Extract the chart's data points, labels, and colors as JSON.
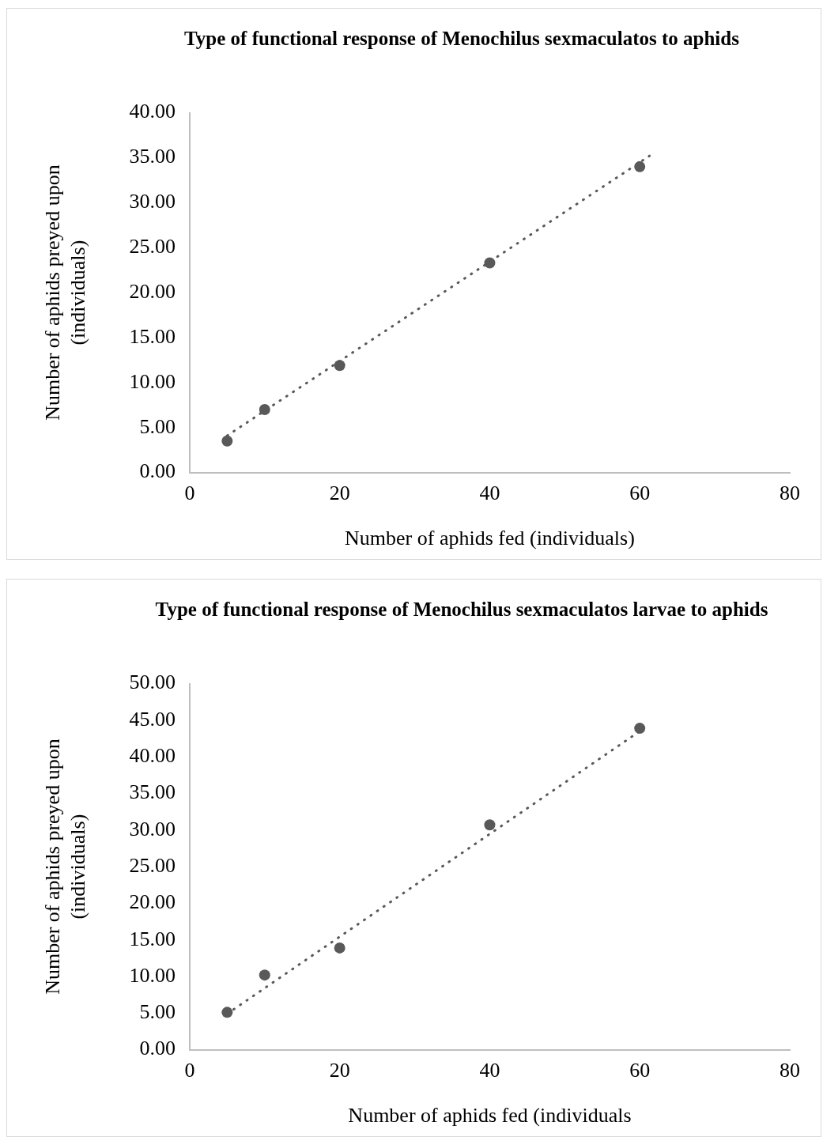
{
  "chart_data": [
    {
      "type": "scatter",
      "title": "Type of functional response of Menochilus sexmaculatos to aphids",
      "xlabel": "Number of aphids fed (individuals)",
      "ylabel": "Number of aphids preyed upon (individuals)",
      "xlim": [
        0,
        80
      ],
      "xticks": [
        0,
        20,
        40,
        60,
        80
      ],
      "ylim": [
        0,
        40
      ],
      "yticks": [
        {
          "value": 0,
          "label": "0.00"
        },
        {
          "value": 5,
          "label": "5.00"
        },
        {
          "value": 10,
          "label": "10.00"
        },
        {
          "value": 15,
          "label": "15.00"
        },
        {
          "value": 20,
          "label": "20.00"
        },
        {
          "value": 25,
          "label": "25.00"
        },
        {
          "value": 30,
          "label": "30.00"
        },
        {
          "value": 35,
          "label": "35.00"
        },
        {
          "value": 40,
          "label": "40.00"
        }
      ],
      "grid": false,
      "legend": false,
      "series": [
        {
          "type": "scatter",
          "color": "#595959",
          "marker": "circle",
          "x": [
            5,
            10,
            20,
            40,
            60
          ],
          "values": [
            3.5,
            7.0,
            11.9,
            23.3,
            34.0
          ]
        },
        {
          "type": "line",
          "color": "#595959",
          "line_style": "dotted",
          "marker": "none",
          "x": [
            5,
            61.3
          ],
          "values": [
            4.1,
            35.2
          ]
        }
      ]
    },
    {
      "type": "scatter",
      "title": "Type of functional response of Menochilus sexmaculatos larvae to aphids",
      "xlabel": "Number of aphids fed (individuals",
      "ylabel": "Number of aphids preyed upon (individuals)",
      "xlim": [
        0,
        80
      ],
      "xticks": [
        0,
        20,
        40,
        60,
        80
      ],
      "ylim": [
        0,
        50
      ],
      "yticks": [
        {
          "value": 0,
          "label": "0.00"
        },
        {
          "value": 5,
          "label": "5.00"
        },
        {
          "value": 10,
          "label": "10.00"
        },
        {
          "value": 15,
          "label": "15.00"
        },
        {
          "value": 20,
          "label": "20.00"
        },
        {
          "value": 25,
          "label": "25.00"
        },
        {
          "value": 30,
          "label": "30.00"
        },
        {
          "value": 35,
          "label": "35.00"
        },
        {
          "value": 40,
          "label": "40.00"
        },
        {
          "value": 45,
          "label": "45.00"
        },
        {
          "value": 50,
          "label": "50.00"
        }
      ],
      "grid": false,
      "legend": false,
      "series": [
        {
          "type": "scatter",
          "color": "#595959",
          "marker": "circle",
          "x": [
            5,
            10,
            20,
            40,
            60
          ],
          "values": [
            5.1,
            10.2,
            13.9,
            30.7,
            43.9
          ]
        },
        {
          "type": "line",
          "color": "#595959",
          "line_style": "dotted",
          "marker": "none",
          "x": [
            5,
            60
          ],
          "values": [
            4.9,
            43.5
          ]
        }
      ]
    }
  ]
}
